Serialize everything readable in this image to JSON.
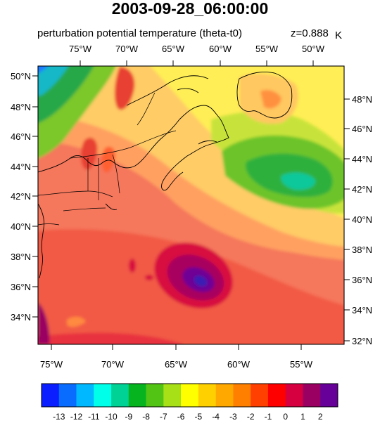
{
  "header": {
    "title": "2003-09-28_06:00:00",
    "left_string": "perturbation potential temperature (theta-t0)",
    "right_string": "z=0.888",
    "units": "K"
  },
  "map": {
    "projection": "Lambert Conformal",
    "region": "U.S. Northeast, Atlantic Canada and western North Atlantic",
    "features": [
      "coastlines",
      "U.S. state boundaries",
      "Canadian province boundaries"
    ],
    "top_axis_labels": [
      "75°W",
      "70°W",
      "65°W",
      "60°W",
      "55°W",
      "50°W"
    ],
    "bottom_axis_labels": [
      "75°W",
      "70°W",
      "65°W",
      "60°W",
      "55°W"
    ],
    "left_axis_labels": [
      "50°N",
      "48°N",
      "46°N",
      "44°N",
      "42°N",
      "40°N",
      "38°N",
      "36°N",
      "34°N"
    ],
    "right_axis_labels": [
      "48°N",
      "46°N",
      "44°N",
      "42°N",
      "40°N",
      "38°N",
      "36°N",
      "34°N",
      "32°N"
    ]
  },
  "field": {
    "variable": "perturbation potential temperature (theta-t0)",
    "units": "K",
    "level": "z=0.888",
    "features": [
      {
        "name": "cold anomaly over Gulf of St. Lawrence / offshore Newfoundland",
        "min_value": -10
      },
      {
        "name": "cold air over southern Quebec",
        "min_value": -12
      },
      {
        "name": "warm core of hurricane southeast of Nova Scotia",
        "max_value": 2
      },
      {
        "name": "warm ridges over Appalachians",
        "max_value": 1
      }
    ]
  },
  "colorbar": {
    "labels": [
      "-13",
      "-12",
      "-11",
      "-10",
      "-9",
      "-8",
      "-7",
      "-6",
      "-5",
      "-4",
      "-3",
      "-2",
      "-1",
      "0",
      "1",
      "2"
    ],
    "colors": [
      "#0a1eff",
      "#0a6cff",
      "#00b8ff",
      "#00ffe8",
      "#00d296",
      "#06b41f",
      "#52c414",
      "#a7e017",
      "#ffff00",
      "#ffd000",
      "#ffa800",
      "#ff8000",
      "#ff4000",
      "#ff0000",
      "#d60040",
      "#9a0062",
      "#660099"
    ]
  },
  "chart_data": {
    "type": "heatmap",
    "title": "2003-09-28_06:00:00",
    "subtitle": "perturbation potential temperature (theta-t0)   z=0.888",
    "units": "K",
    "levels": [
      -13,
      -12,
      -11,
      -10,
      -9,
      -8,
      -7,
      -6,
      -5,
      -4,
      -3,
      -2,
      -1,
      0,
      1,
      2
    ],
    "xlabel": "",
    "ylabel": "",
    "lon_range": [
      -76,
      -52
    ],
    "lat_range": [
      32,
      51
    ]
  }
}
